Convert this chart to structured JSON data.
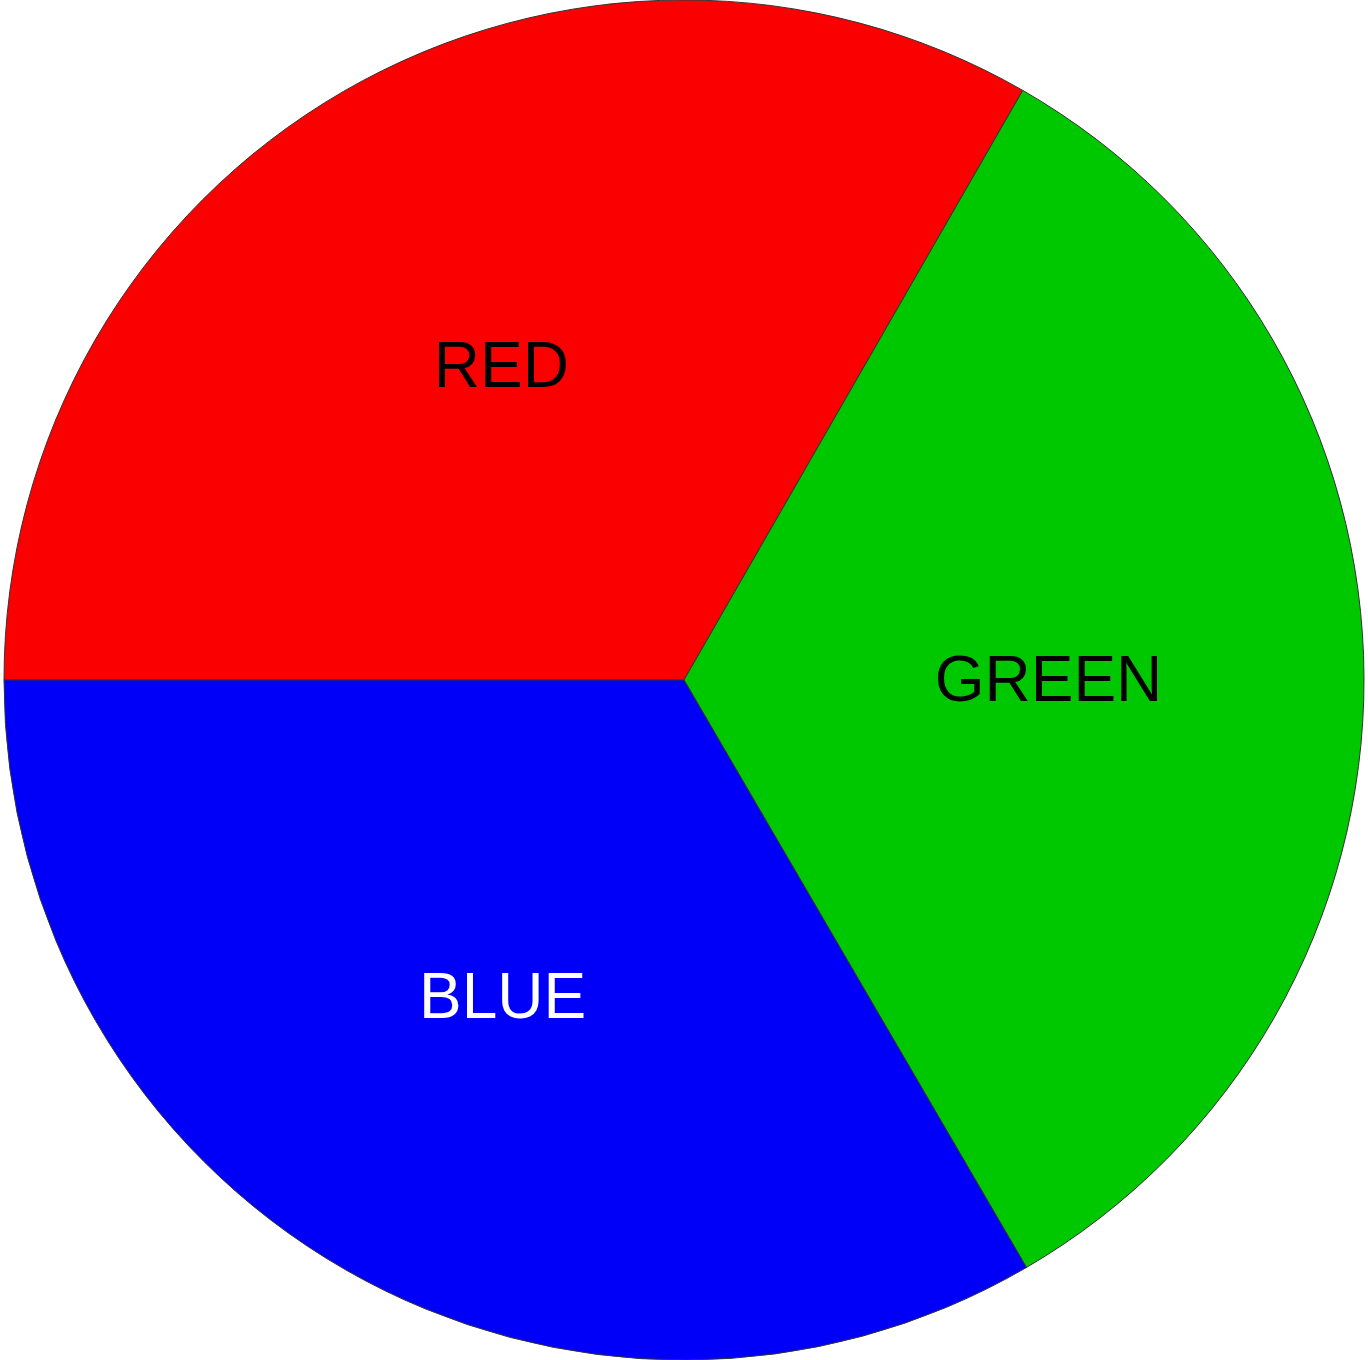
{
  "chart_data": {
    "type": "pie",
    "categories": [
      "RED",
      "GREEN",
      "BLUE"
    ],
    "values": [
      33.3,
      33.3,
      33.4
    ],
    "colors": [
      "#fa0000",
      "#00c800",
      "#0000fa"
    ],
    "legend": false
  }
}
